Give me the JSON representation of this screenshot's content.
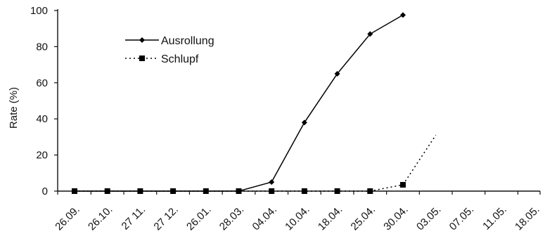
{
  "chart_data": {
    "type": "line",
    "title": "",
    "xlabel": "",
    "ylabel": "Rate (%)",
    "ylim": [
      0,
      100
    ],
    "yticks": [
      0,
      20,
      40,
      60,
      80,
      100
    ],
    "categories": [
      "26.09.",
      "26.10.",
      "27 11.",
      "27 12.",
      "26.01.",
      "28.03.",
      "04.04.",
      "10.04.",
      "18.04.",
      "25.04.",
      "30.04.",
      "03.05.",
      "07.05.",
      "11.05.",
      "18.05."
    ],
    "grid": false,
    "legend_position": "top-left",
    "series": [
      {
        "name": "Ausrollung",
        "marker": "diamond",
        "line_style": "solid",
        "color": "#000000",
        "points": [
          [
            0,
            0
          ],
          [
            1,
            0
          ],
          [
            2,
            0
          ],
          [
            3,
            0
          ],
          [
            4,
            0
          ],
          [
            5,
            0
          ],
          [
            6,
            5
          ],
          [
            7,
            38
          ],
          [
            8,
            65
          ],
          [
            9,
            87
          ],
          [
            10,
            97.5
          ]
        ]
      },
      {
        "name": "Schlupf",
        "marker": "square",
        "line_style": "dotted",
        "color": "#000000",
        "points": [
          [
            0,
            0
          ],
          [
            1,
            0
          ],
          [
            2,
            0
          ],
          [
            3,
            0
          ],
          [
            4,
            0
          ],
          [
            5,
            0
          ],
          [
            6,
            0
          ],
          [
            7,
            0
          ],
          [
            8,
            0
          ],
          [
            9,
            0
          ],
          [
            10,
            3.5
          ],
          [
            11,
            31
          ]
        ],
        "marker_count": 11
      }
    ]
  }
}
